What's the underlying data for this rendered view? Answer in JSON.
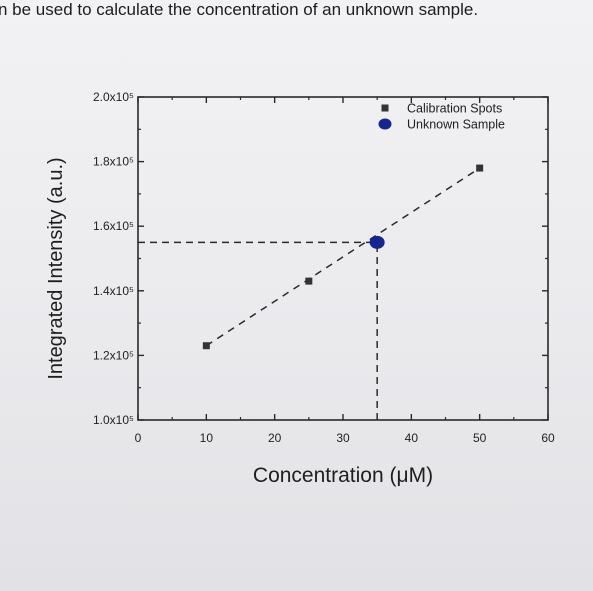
{
  "caption_fragment": "n be used to calculate the concentration of an unknown sample.",
  "chart_data": {
    "type": "scatter",
    "xlabel": "Concentration (μM)",
    "ylabel": "Integrated Intensity (a.u.)",
    "xlim": [
      0,
      60
    ],
    "ylim": [
      100000,
      200000
    ],
    "x_ticks": [
      0,
      10,
      20,
      30,
      40,
      50,
      60
    ],
    "x_tick_labels": [
      "0",
      "10",
      "20",
      "30",
      "40",
      "50",
      "60"
    ],
    "y_ticks": [
      100000,
      120000,
      140000,
      160000,
      180000,
      200000
    ],
    "y_tick_labels": [
      "1.0x10⁵",
      "1.2x10⁵",
      "1.4x10⁵",
      "1.6x10⁵",
      "1.8x10⁵",
      "2.0x10⁵"
    ],
    "grid": false,
    "legend_position": "top-right",
    "series": [
      {
        "name": "Calibration Spots",
        "marker": "square",
        "color": "#333333",
        "points": [
          {
            "x": 10,
            "y": 123000
          },
          {
            "x": 25,
            "y": 143000
          },
          {
            "x": 50,
            "y": 178000
          }
        ]
      },
      {
        "name": "Unknown Sample",
        "marker": "circle",
        "color": "#15268f",
        "points": [
          {
            "x": 35,
            "y": 155000
          }
        ]
      }
    ],
    "annotations": {
      "fit_line": {
        "from": {
          "x": 10,
          "y": 123000
        },
        "to": {
          "x": 50,
          "y": 178000
        },
        "style": "dashed"
      },
      "guide_horizontal": {
        "y": 155000,
        "from_x": 0,
        "to_x": 35,
        "style": "dashed"
      },
      "guide_vertical": {
        "x": 35,
        "from_y": 100000,
        "to_y": 155000,
        "style": "dashed"
      }
    }
  }
}
